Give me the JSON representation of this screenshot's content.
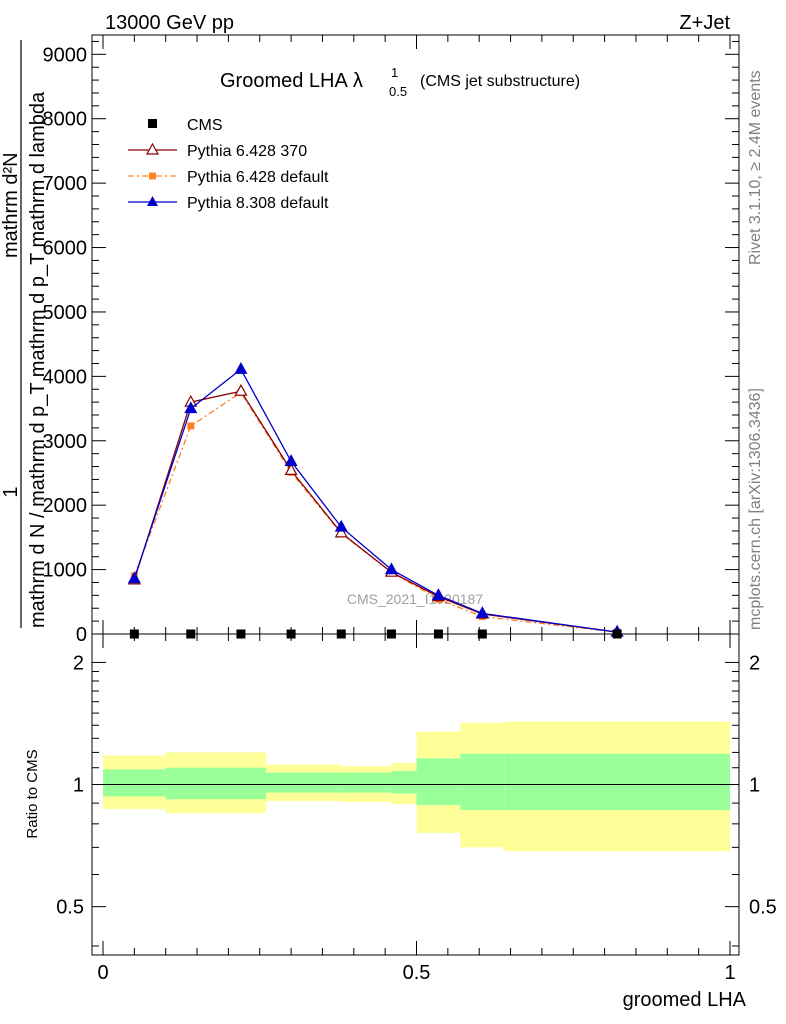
{
  "header": {
    "energy_label": "13000 GeV pp",
    "process_label": "Z+Jet",
    "rivet_label": "Rivet 3.1.10, ≥ 2.4M events",
    "mcplots_label": "mcplots.cern.ch [arXiv:1306.3436]",
    "analysis_watermark": "CMS_2021_I1920187"
  },
  "chart_data": [
    {
      "type": "line",
      "title": "Groomed LHA",
      "title_symbol": "λ",
      "title_sup": "1",
      "title_sub": "0.5",
      "subtitle": "(CMS jet substructure)",
      "ylabel_numerator": "mathrm d²N",
      "ylabel_denominator": "mathrm d N / mathrm d p_T mathrm d p_T mathrm d lambda",
      "ylabel_fraction_one": "1",
      "xlim": [
        0,
        1
      ],
      "ylim": [
        0,
        9300
      ],
      "y_ticks": [
        0,
        1000,
        2000,
        3000,
        4000,
        5000,
        6000,
        7000,
        8000,
        9000
      ],
      "y_tick_labels": [
        "0",
        "1000",
        "2000",
        "3000",
        "4000",
        "5000",
        "6000",
        "7000",
        "8000",
        "9000"
      ],
      "x": [
        0.05,
        0.14,
        0.22,
        0.3,
        0.38,
        0.46,
        0.535,
        0.605,
        0.82
      ],
      "series": [
        {
          "name": "CMS",
          "marker": "square",
          "color": "#000000",
          "values": [
            0,
            0,
            0,
            0,
            0,
            0,
            0,
            0,
            0
          ]
        },
        {
          "name": "Pythia 6.428 370",
          "marker": "open-triangle",
          "color": "#8b0000",
          "values": [
            840,
            3600,
            3770,
            2540,
            1570,
            960,
            580,
            310,
            30
          ]
        },
        {
          "name": "Pythia 6.428 default",
          "marker": "filled-square",
          "color": "#ff7f27",
          "dash": "dash-dot",
          "values": [
            900,
            3230,
            3750,
            2510,
            1560,
            960,
            540,
            270,
            30
          ]
        },
        {
          "name": "Pythia 8.308 default",
          "marker": "filled-triangle",
          "color": "#0000cc",
          "values": [
            860,
            3500,
            4110,
            2680,
            1660,
            1000,
            600,
            320,
            30
          ]
        }
      ],
      "legend_position": "top-left"
    },
    {
      "type": "area",
      "ylabel": "Ratio to CMS",
      "xlabel": "groomed LHA",
      "xlim": [
        0,
        1
      ],
      "ylim": [
        0.38,
        2.35
      ],
      "y_scale": "log",
      "y_ticks": [
        0.5,
        1,
        2
      ],
      "y_tick_labels": [
        "0.5",
        "1",
        "2"
      ],
      "x_ticks": [
        0,
        0.5,
        1
      ],
      "x_tick_labels": [
        "0",
        "0.5",
        "1"
      ],
      "reference_line": 1,
      "bins": [
        {
          "lo": 0.0,
          "hi": 0.1,
          "stat_lo": 0.935,
          "stat_hi": 1.09,
          "tot_lo": 0.87,
          "tot_hi": 1.18
        },
        {
          "lo": 0.1,
          "hi": 0.26,
          "stat_lo": 0.92,
          "stat_hi": 1.1,
          "tot_lo": 0.85,
          "tot_hi": 1.2
        },
        {
          "lo": 0.26,
          "hi": 0.38,
          "stat_lo": 0.955,
          "stat_hi": 1.07,
          "tot_lo": 0.91,
          "tot_hi": 1.12
        },
        {
          "lo": 0.38,
          "hi": 0.46,
          "stat_lo": 0.955,
          "stat_hi": 1.07,
          "tot_lo": 0.905,
          "tot_hi": 1.11
        },
        {
          "lo": 0.46,
          "hi": 0.5,
          "stat_lo": 0.95,
          "stat_hi": 1.08,
          "tot_lo": 0.895,
          "tot_hi": 1.13
        },
        {
          "lo": 0.5,
          "hi": 0.57,
          "stat_lo": 0.89,
          "stat_hi": 1.16,
          "tot_lo": 0.76,
          "tot_hi": 1.35
        },
        {
          "lo": 0.57,
          "hi": 0.64,
          "stat_lo": 0.865,
          "stat_hi": 1.19,
          "tot_lo": 0.7,
          "tot_hi": 1.42
        },
        {
          "lo": 0.64,
          "hi": 1.0,
          "stat_lo": 0.865,
          "stat_hi": 1.19,
          "tot_lo": 0.685,
          "tot_hi": 1.43
        }
      ],
      "colors": {
        "stat": "#99ff99",
        "total": "#ffff99",
        "reference": "#000000"
      }
    }
  ]
}
